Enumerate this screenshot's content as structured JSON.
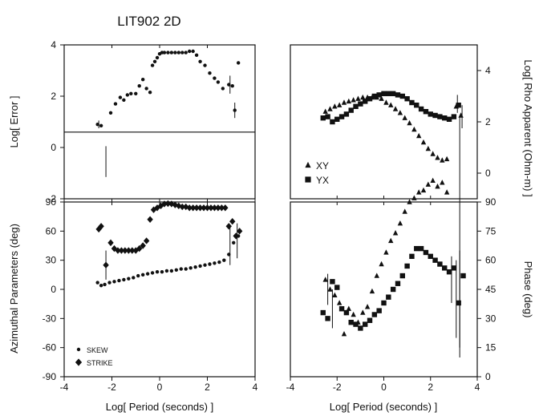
{
  "title": "LIT902 2D",
  "colors": {
    "ink": "#111111",
    "background": "#ffffff"
  },
  "chart_data": [
    {
      "id": "error",
      "type": "scatter",
      "xlim": [
        -4,
        4
      ],
      "ylim": [
        -2,
        4
      ],
      "xticks": [
        "-4",
        "-2",
        "0",
        "2",
        "4"
      ],
      "yticks": [
        "-2",
        "0",
        "2",
        "4"
      ],
      "xlabel": "",
      "ylabel": "Log[ Error ]",
      "hline": 0.6,
      "series": [
        {
          "marker": "circle",
          "points": [
            [
              -2.6,
              0.9
            ],
            [
              -2.45,
              0.85
            ],
            [
              -2.05,
              1.35
            ],
            [
              -1.85,
              1.7
            ],
            [
              -1.65,
              1.95
            ],
            [
              -1.5,
              1.85
            ],
            [
              -1.35,
              2.05
            ],
            [
              -1.2,
              2.1
            ],
            [
              -1.0,
              2.1
            ],
            [
              -0.85,
              2.4
            ],
            [
              -0.7,
              2.65
            ],
            [
              -0.55,
              2.3
            ],
            [
              -0.4,
              2.15
            ],
            [
              -0.3,
              3.2
            ],
            [
              -0.2,
              3.35
            ],
            [
              -0.1,
              3.5
            ],
            [
              0.0,
              3.65
            ],
            [
              0.1,
              3.7
            ],
            [
              0.2,
              3.7
            ],
            [
              0.35,
              3.7
            ],
            [
              0.5,
              3.7
            ],
            [
              0.65,
              3.7
            ],
            [
              0.8,
              3.7
            ],
            [
              0.95,
              3.7
            ],
            [
              1.1,
              3.7
            ],
            [
              1.25,
              3.75
            ],
            [
              1.4,
              3.75
            ],
            [
              1.55,
              3.6
            ],
            [
              1.7,
              3.35
            ],
            [
              1.9,
              3.2
            ],
            [
              2.1,
              2.9
            ],
            [
              2.3,
              2.7
            ],
            [
              2.45,
              2.55
            ],
            [
              2.65,
              2.3
            ],
            [
              2.9,
              2.45
            ],
            [
              3.05,
              2.4
            ],
            [
              3.15,
              1.45
            ],
            [
              3.3,
              3.3
            ]
          ],
          "error_bars": [
            [
              -2.55,
              0.9,
              0.15
            ],
            [
              -2.25,
              -0.55,
              0.6
            ],
            [
              2.95,
              2.45,
              0.35
            ],
            [
              3.15,
              1.45,
              0.3
            ]
          ]
        }
      ]
    },
    {
      "id": "rho",
      "type": "scatter",
      "xlim": [
        -4,
        4
      ],
      "ylim": [
        -1,
        5
      ],
      "xticks": [],
      "yticks": [
        "0",
        "2",
        "4"
      ],
      "ylabel": "Log[ Rho Apparent (Ohm-m) ]",
      "series": [
        {
          "name": "XY",
          "marker": "triangle",
          "points": [
            [
              -2.5,
              2.4
            ],
            [
              -2.3,
              2.5
            ],
            [
              -2.1,
              2.6
            ],
            [
              -1.9,
              2.65
            ],
            [
              -1.7,
              2.75
            ],
            [
              -1.5,
              2.8
            ],
            [
              -1.3,
              2.85
            ],
            [
              -1.1,
              2.9
            ],
            [
              -0.9,
              2.95
            ],
            [
              -0.7,
              2.95
            ],
            [
              -0.5,
              2.95
            ],
            [
              -0.3,
              2.95
            ],
            [
              -0.1,
              2.9
            ],
            [
              0.1,
              2.75
            ],
            [
              0.3,
              2.65
            ],
            [
              0.5,
              2.5
            ],
            [
              0.7,
              2.35
            ],
            [
              0.9,
              2.15
            ],
            [
              1.1,
              1.95
            ],
            [
              1.3,
              1.7
            ],
            [
              1.5,
              1.45
            ],
            [
              1.7,
              1.2
            ],
            [
              1.9,
              0.95
            ],
            [
              2.1,
              0.75
            ],
            [
              2.3,
              0.6
            ],
            [
              2.5,
              0.5
            ],
            [
              2.7,
              0.55
            ],
            [
              3.1,
              2.6
            ],
            [
              3.3,
              2.25
            ]
          ]
        },
        {
          "name": "YX",
          "marker": "square",
          "points": [
            [
              -2.6,
              2.15
            ],
            [
              -2.4,
              2.2
            ],
            [
              -2.2,
              2.0
            ],
            [
              -2.0,
              2.1
            ],
            [
              -1.8,
              2.2
            ],
            [
              -1.6,
              2.3
            ],
            [
              -1.4,
              2.45
            ],
            [
              -1.2,
              2.6
            ],
            [
              -1.0,
              2.7
            ],
            [
              -0.8,
              2.8
            ],
            [
              -0.6,
              2.9
            ],
            [
              -0.4,
              3.0
            ],
            [
              -0.2,
              3.05
            ],
            [
              0.0,
              3.1
            ],
            [
              0.2,
              3.1
            ],
            [
              0.4,
              3.1
            ],
            [
              0.6,
              3.05
            ],
            [
              0.8,
              3.0
            ],
            [
              1.0,
              2.9
            ],
            [
              1.2,
              2.75
            ],
            [
              1.4,
              2.65
            ],
            [
              1.6,
              2.5
            ],
            [
              1.8,
              2.4
            ],
            [
              2.0,
              2.3
            ],
            [
              2.2,
              2.25
            ],
            [
              2.4,
              2.2
            ],
            [
              2.6,
              2.15
            ],
            [
              2.8,
              2.1
            ],
            [
              3.0,
              2.2
            ],
            [
              3.2,
              2.65
            ]
          ]
        }
      ],
      "error_bars": [
        [
          3.15,
          2.7,
          0.35
        ],
        [
          3.35,
          2.2,
          0.45
        ]
      ],
      "vline": 3.25,
      "legend": [
        {
          "label": "XY",
          "marker": "triangle"
        },
        {
          "label": "YX",
          "marker": "square"
        }
      ]
    },
    {
      "id": "azimuthal",
      "type": "scatter",
      "xlim": [
        -4,
        4
      ],
      "ylim": [
        -90,
        90
      ],
      "xticks": [
        "-4",
        "-2",
        "0",
        "2",
        "4"
      ],
      "yticks": [
        "-90",
        "-60",
        "-30",
        "0",
        "30",
        "60",
        "90"
      ],
      "xlabel": "Log[ Period (seconds) ]",
      "ylabel": "Azimuthal Parameters (deg)",
      "series": [
        {
          "name": "SKEW",
          "marker": "circle",
          "points": [
            [
              -2.6,
              7
            ],
            [
              -2.45,
              4
            ],
            [
              -2.3,
              5
            ],
            [
              -2.1,
              7
            ],
            [
              -1.9,
              8
            ],
            [
              -1.7,
              9
            ],
            [
              -1.5,
              10
            ],
            [
              -1.3,
              11
            ],
            [
              -1.1,
              12
            ],
            [
              -0.9,
              14
            ],
            [
              -0.7,
              15
            ],
            [
              -0.5,
              16
            ],
            [
              -0.3,
              17
            ],
            [
              -0.1,
              18
            ],
            [
              0.1,
              18
            ],
            [
              0.3,
              19
            ],
            [
              0.5,
              19
            ],
            [
              0.7,
              20
            ],
            [
              0.9,
              21
            ],
            [
              1.1,
              21
            ],
            [
              1.3,
              22
            ],
            [
              1.5,
              23
            ],
            [
              1.7,
              24
            ],
            [
              1.9,
              25
            ],
            [
              2.1,
              26
            ],
            [
              2.3,
              27
            ],
            [
              2.5,
              28
            ],
            [
              2.7,
              30
            ],
            [
              2.9,
              36
            ],
            [
              3.1,
              48
            ],
            [
              3.3,
              55
            ]
          ]
        },
        {
          "name": "STRIKE",
          "marker": "diamond",
          "points": [
            [
              -2.55,
              62
            ],
            [
              -2.45,
              65
            ],
            [
              -2.25,
              25
            ],
            [
              -2.05,
              48
            ],
            [
              -1.9,
              42
            ],
            [
              -1.75,
              40
            ],
            [
              -1.6,
              40
            ],
            [
              -1.45,
              40
            ],
            [
              -1.3,
              40
            ],
            [
              -1.15,
              40
            ],
            [
              -1.0,
              40
            ],
            [
              -0.85,
              42
            ],
            [
              -0.7,
              45
            ],
            [
              -0.55,
              50
            ],
            [
              -0.4,
              72
            ],
            [
              -0.25,
              82
            ],
            [
              -0.1,
              84
            ],
            [
              0.05,
              86
            ],
            [
              0.2,
              88
            ],
            [
              0.35,
              89
            ],
            [
              0.5,
              88
            ],
            [
              0.65,
              87
            ],
            [
              0.8,
              86
            ],
            [
              0.95,
              85
            ],
            [
              1.1,
              85
            ],
            [
              1.25,
              84
            ],
            [
              1.4,
              84
            ],
            [
              1.55,
              84
            ],
            [
              1.7,
              84
            ],
            [
              1.85,
              84
            ],
            [
              2.0,
              84
            ],
            [
              2.15,
              84
            ],
            [
              2.3,
              84
            ],
            [
              2.45,
              84
            ],
            [
              2.6,
              84
            ],
            [
              2.75,
              84
            ],
            [
              2.9,
              65
            ],
            [
              3.05,
              70
            ],
            [
              3.2,
              55
            ],
            [
              3.35,
              60
            ]
          ]
        }
      ],
      "error_bars": [
        [
          -2.25,
          25,
          15
        ],
        [
          2.95,
          45,
          20
        ],
        [
          3.25,
          50,
          18
        ]
      ],
      "legend": [
        {
          "label": "SKEW",
          "marker": "circle"
        },
        {
          "label": "STRIKE",
          "marker": "diamond"
        }
      ]
    },
    {
      "id": "phase",
      "type": "scatter",
      "xlim": [
        -4,
        4
      ],
      "ylim": [
        0,
        90
      ],
      "yticks_right": [
        "0",
        "15",
        "30",
        "45",
        "60",
        "75",
        "90"
      ],
      "xticks": [
        "-4",
        "-2",
        "0",
        "2",
        "4"
      ],
      "xlabel": "Log[ Period (seconds) ]",
      "ylabel": "Phase (deg)",
      "series": [
        {
          "name": "XY",
          "marker": "triangle",
          "points": [
            [
              -2.5,
              50
            ],
            [
              -2.3,
              45
            ],
            [
              -2.1,
              42
            ],
            [
              -1.9,
              38
            ],
            [
              -1.7,
              22
            ],
            [
              -1.5,
              35
            ],
            [
              -1.3,
              32
            ],
            [
              -1.1,
              28
            ],
            [
              -0.9,
              33
            ],
            [
              -0.7,
              36
            ],
            [
              -0.5,
              44
            ],
            [
              -0.3,
              52
            ],
            [
              -0.1,
              58
            ],
            [
              0.1,
              64
            ],
            [
              0.3,
              70
            ],
            [
              0.5,
              74
            ],
            [
              0.7,
              79
            ],
            [
              0.9,
              85
            ],
            [
              1.1,
              90
            ],
            [
              1.3,
              92
            ],
            [
              1.5,
              95
            ],
            [
              1.7,
              96
            ],
            [
              1.9,
              99
            ],
            [
              2.1,
              101
            ],
            [
              2.3,
              98
            ],
            [
              2.5,
              100
            ],
            [
              2.7,
              95
            ]
          ]
        },
        {
          "name": "YX",
          "marker": "square",
          "points": [
            [
              -2.6,
              33
            ],
            [
              -2.4,
              30
            ],
            [
              -2.2,
              49
            ],
            [
              -2.0,
              46
            ],
            [
              -1.8,
              35
            ],
            [
              -1.6,
              33
            ],
            [
              -1.4,
              28
            ],
            [
              -1.2,
              27
            ],
            [
              -1.0,
              25
            ],
            [
              -0.8,
              27
            ],
            [
              -0.6,
              29
            ],
            [
              -0.4,
              32
            ],
            [
              -0.2,
              34
            ],
            [
              0.0,
              38
            ],
            [
              0.2,
              41
            ],
            [
              0.4,
              45
            ],
            [
              0.6,
              48
            ],
            [
              0.8,
              52
            ],
            [
              1.0,
              57
            ],
            [
              1.2,
              62
            ],
            [
              1.4,
              66
            ],
            [
              1.6,
              66
            ],
            [
              1.8,
              64
            ],
            [
              2.0,
              62
            ],
            [
              2.2,
              60
            ],
            [
              2.4,
              58
            ],
            [
              2.6,
              56
            ],
            [
              2.8,
              54
            ],
            [
              3.0,
              56
            ],
            [
              3.2,
              38
            ],
            [
              3.4,
              52
            ]
          ]
        }
      ],
      "error_bars": [
        [
          -2.4,
          45,
          8
        ],
        [
          -2.2,
          35,
          10
        ],
        [
          2.9,
          50,
          12
        ],
        [
          3.1,
          40,
          20
        ],
        [
          3.25,
          40,
          25
        ]
      ]
    }
  ],
  "axis_labels": {
    "error_y": "Log[ Error ]",
    "rho_y": "Log[ Rho Apparent (Ohm-m) ]",
    "azimuthal_y": "Azimuthal Parameters (deg)",
    "phase_y": "Phase (deg)",
    "x_left": "Log[ Period (seconds) ]",
    "x_right": "Log[ Period (seconds) ]"
  }
}
